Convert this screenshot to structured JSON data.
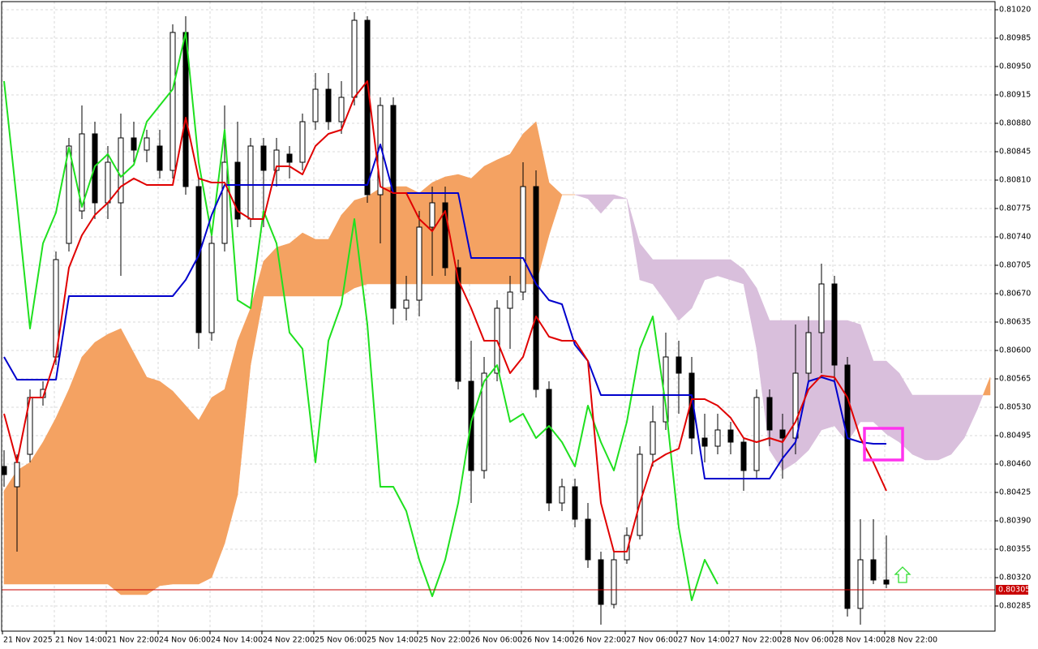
{
  "chart_data": {
    "type": "candlestick",
    "ylim": [
      0.80254,
      0.8103
    ],
    "yticks": [
      {
        "value": 0.8102,
        "label": "0.81020"
      },
      0.80985,
      {
        "value": 0.8095,
        "label": "0.80950"
      },
      0.80915,
      {
        "value": 0.8088,
        "label": "0.80880"
      },
      0.80845,
      {
        "value": 0.8081,
        "label": "0.80810"
      },
      0.80775,
      {
        "value": 0.8074,
        "label": "0.80740"
      },
      0.80705,
      {
        "value": 0.8067,
        "label": "0.80670"
      },
      0.80635,
      {
        "value": 0.806,
        "label": "0.80600"
      },
      0.80565,
      {
        "value": 0.8053,
        "label": "0.80530"
      },
      0.80495,
      {
        "value": 0.8046,
        "label": "0.80460"
      },
      0.80425,
      {
        "value": 0.8039,
        "label": "0.80390"
      },
      0.80355,
      {
        "value": 0.8032,
        "label": "0.80320"
      },
      0.80285
    ],
    "grid": true,
    "x_labels": [
      "21 Nov 2025",
      "21 Nov 14:00",
      "21 Nov 22:00",
      "24 Nov 06:00",
      "24 Nov 14:00",
      "24 Nov 22:00",
      "25 Nov 06:00",
      "25 Nov 14:00",
      "25 Nov 22:00",
      "26 Nov 06:00",
      "26 Nov 14:00",
      "26 Nov 22:00",
      "27 Nov 06:00",
      "27 Nov 14:00",
      "27 Nov 22:00",
      "28 Nov 06:00",
      "28 Nov 14:00",
      "28 Nov 22:00"
    ],
    "bull_color": "#ffffff",
    "bear_color": "#000000",
    "open": [
      0.80457,
      0.80432,
      0.80472,
      0.80542,
      0.80592,
      0.80732,
      0.80772,
      0.80867,
      0.80782,
      0.80782,
      0.80862,
      0.80847,
      0.80852,
      0.80822,
      0.80992,
      0.80802,
      0.80622,
      0.80732,
      0.80832,
      0.80762,
      0.80852,
      0.80822,
      0.80842,
      0.80832,
      0.80882,
      0.80922,
      0.80882,
      0.80912,
      0.81007,
      0.80792,
      0.80902,
      0.80652,
      0.80662,
      0.80752,
      0.80782,
      0.80702,
      0.80562,
      0.80452,
      0.80572,
      0.80652,
      0.80672,
      0.80802,
      0.80552,
      0.80412,
      0.80432,
      0.80392,
      0.80342,
      0.80287,
      0.80342,
      0.80372,
      0.80472,
      0.80512,
      0.80592,
      0.80572,
      0.80492,
      0.80482,
      0.80502,
      0.80487,
      0.80452,
      0.80542,
      0.80502,
      0.80492,
      0.80572,
      0.80622,
      0.80682,
      0.80582,
      0.80282,
      0.80342,
      0.80317
    ],
    "high": [
      0.80477,
      0.80472,
      0.80552,
      0.80562,
      0.80722,
      0.80862,
      0.80902,
      0.80882,
      0.80852,
      0.80892,
      0.80882,
      0.80872,
      0.80872,
      0.81002,
      0.81012,
      0.80812,
      0.80742,
      0.80902,
      0.80882,
      0.80862,
      0.80862,
      0.80862,
      0.80852,
      0.80892,
      0.80942,
      0.80942,
      0.80932,
      0.81017,
      0.81012,
      0.80912,
      0.80912,
      0.80692,
      0.80772,
      0.80802,
      0.80802,
      0.80712,
      0.80612,
      0.80592,
      0.80662,
      0.80692,
      0.80832,
      0.80822,
      0.80562,
      0.80442,
      0.80442,
      0.80412,
      0.80352,
      0.80352,
      0.80382,
      0.80482,
      0.80532,
      0.80622,
      0.80612,
      0.80592,
      0.80522,
      0.80522,
      0.80512,
      0.80492,
      0.80552,
      0.80552,
      0.80522,
      0.80632,
      0.80642,
      0.80707,
      0.80692,
      0.80592,
      0.80392,
      0.80392,
      0.80372
    ],
    "low": [
      0.80432,
      0.80352,
      0.80462,
      0.80532,
      0.80582,
      0.80722,
      0.80762,
      0.80762,
      0.80762,
      0.80692,
      0.80832,
      0.80832,
      0.80812,
      0.80812,
      0.80792,
      0.80602,
      0.80612,
      0.80722,
      0.80752,
      0.80752,
      0.80752,
      0.80802,
      0.80812,
      0.80822,
      0.80872,
      0.80872,
      0.80867,
      0.80902,
      0.80782,
      0.80732,
      0.80632,
      0.80637,
      0.80642,
      0.80692,
      0.80692,
      0.80552,
      0.80412,
      0.80442,
      0.80562,
      0.80602,
      0.80662,
      0.80542,
      0.80402,
      0.80402,
      0.80382,
      0.80332,
      0.80262,
      0.80282,
      0.80337,
      0.80367,
      0.80457,
      0.80502,
      0.80522,
      0.80472,
      0.80462,
      0.80472,
      0.80472,
      0.80427,
      0.80442,
      0.80482,
      0.80442,
      0.80472,
      0.80562,
      0.80572,
      0.80562,
      0.80272,
      0.80262,
      0.80312,
      0.80307
    ],
    "close": [
      0.80447,
      0.80462,
      0.80542,
      0.80552,
      0.80712,
      0.80852,
      0.80867,
      0.80782,
      0.80832,
      0.80862,
      0.80847,
      0.80862,
      0.80822,
      0.80992,
      0.80802,
      0.80622,
      0.80732,
      0.80832,
      0.80762,
      0.80852,
      0.80822,
      0.80847,
      0.80832,
      0.80882,
      0.80922,
      0.80882,
      0.80912,
      0.81007,
      0.80792,
      0.80902,
      0.80652,
      0.80662,
      0.80752,
      0.80782,
      0.80702,
      0.80562,
      0.80452,
      0.80572,
      0.80652,
      0.80672,
      0.80802,
      0.80552,
      0.80412,
      0.80432,
      0.80392,
      0.80342,
      0.80287,
      0.80342,
      0.80372,
      0.80472,
      0.80512,
      0.80592,
      0.80572,
      0.80492,
      0.80482,
      0.80502,
      0.80487,
      0.80452,
      0.80542,
      0.80502,
      0.80492,
      0.80572,
      0.80622,
      0.80682,
      0.80582,
      0.80282,
      0.80342,
      0.80317,
      0.80312
    ],
    "lines": [
      {
        "color": "#1fe01f",
        "values": [
          0.80932,
          0.80782,
          0.80627,
          0.80732,
          0.8077,
          0.8085,
          0.80777,
          0.80827,
          0.80842,
          0.80814,
          0.80829,
          0.80882,
          0.80902,
          0.80922,
          0.80992,
          0.80832,
          0.80742,
          0.80872,
          0.80662,
          0.80652,
          0.80772,
          0.80732,
          0.80622,
          0.80602,
          0.80462,
          0.80612,
          0.80657,
          0.80762,
          0.80632,
          0.80432,
          0.80432,
          0.80402,
          0.80342,
          0.80297,
          0.80342,
          0.80412,
          0.80512,
          0.80562,
          0.80582,
          0.80512,
          0.80522,
          0.80492,
          0.80507,
          0.80487,
          0.80457,
          0.80532,
          0.80487,
          0.80452,
          0.80512,
          0.80602,
          0.80642,
          0.80532,
          0.80382,
          0.80292,
          0.80342,
          0.80312,
          null,
          null,
          null,
          null,
          null,
          null,
          null,
          null,
          null,
          null,
          null,
          null,
          null
        ]
      },
      {
        "color": "#0000cc",
        "values": [
          0.80592,
          0.80564,
          0.80564,
          0.80564,
          0.80564,
          0.80667,
          0.80667,
          0.80667,
          0.80667,
          0.80667,
          0.80667,
          0.80667,
          0.80667,
          0.80667,
          0.80687,
          0.80717,
          0.80767,
          0.80804,
          0.80804,
          0.80804,
          0.80804,
          0.80804,
          0.80804,
          0.80804,
          0.80804,
          0.80804,
          0.80804,
          0.80804,
          0.80804,
          0.80854,
          0.80794,
          0.80794,
          0.80794,
          0.80794,
          0.80794,
          0.80794,
          0.80714,
          0.80714,
          0.80714,
          0.80714,
          0.80714,
          0.80682,
          0.80662,
          0.80657,
          0.80607,
          0.80587,
          0.80545,
          0.80545,
          0.80545,
          0.80545,
          0.80545,
          0.80545,
          0.80545,
          0.80545,
          0.80442,
          0.80442,
          0.80442,
          0.80442,
          0.80442,
          0.80442,
          0.80467,
          0.80487,
          0.80562,
          0.80567,
          0.80562,
          0.80492,
          0.80487,
          0.80485,
          0.80485
        ]
      },
      {
        "color": "#e00000",
        "values": [
          0.80522,
          0.80462,
          0.80542,
          0.80542,
          0.80592,
          0.80702,
          0.80742,
          0.80767,
          0.80782,
          0.80802,
          0.80812,
          0.80804,
          0.80804,
          0.80804,
          0.80887,
          0.80812,
          0.80807,
          0.80807,
          0.80772,
          0.80762,
          0.80762,
          0.80827,
          0.80827,
          0.80817,
          0.80852,
          0.80867,
          0.80872,
          0.80912,
          0.80932,
          0.80802,
          0.80794,
          0.80794,
          0.80762,
          0.80747,
          0.80772,
          0.80687,
          0.80652,
          0.80612,
          0.80612,
          0.80572,
          0.80592,
          0.80642,
          0.80617,
          0.80612,
          0.80612,
          0.80587,
          0.80412,
          0.80352,
          0.80352,
          0.80412,
          0.80462,
          0.80472,
          0.80479,
          0.8054,
          0.8054,
          0.80532,
          0.80517,
          0.80492,
          0.80487,
          0.80492,
          0.80487,
          0.80512,
          0.80552,
          0.80569,
          0.80567,
          0.80542,
          0.80492,
          0.80462,
          0.80427
        ]
      }
    ],
    "cloud": {
      "up_color": "#f4a262",
      "down_color": "#d9bfdc",
      "span_a": [
        0.80427,
        0.80452,
        0.80462,
        0.80487,
        0.80517,
        0.80552,
        0.80592,
        0.8061,
        0.8062,
        0.80627,
        0.80597,
        0.80567,
        0.80562,
        0.8055,
        0.80532,
        0.80514,
        0.80542,
        0.80552,
        0.80612,
        0.80652,
        0.8071,
        0.80727,
        0.80732,
        0.80745,
        0.80737,
        0.80737,
        0.80767,
        0.80785,
        0.8079,
        0.808,
        0.80802,
        0.80802,
        0.80794,
        0.80807,
        0.80814,
        0.80817,
        0.80812,
        0.80827,
        0.80835,
        0.80842,
        0.80867,
        0.80882,
        0.80807,
        0.80792,
        0.80792,
        0.80787,
        0.80769,
        0.80787,
        0.80787,
        0.80687,
        0.80682,
        0.8066,
        0.80637,
        0.80652,
        0.80687,
        0.80692,
        0.80687,
        0.80682,
        0.80602,
        0.80477,
        0.80452,
        0.80462,
        0.80477,
        0.80502,
        0.80507,
        0.80487,
        0.80512,
        0.80512,
        0.80497,
        0.80487,
        0.80472,
        0.80465,
        0.80465,
        0.80472,
        0.80492,
        0.80527,
        0.80567
      ],
      "span_b": [
        0.80312,
        0.80312,
        0.80312,
        0.80312,
        0.80312,
        0.80312,
        0.80312,
        0.80312,
        0.80312,
        0.80299,
        0.80299,
        0.80299,
        0.8031,
        0.80312,
        0.80312,
        0.80312,
        0.8032,
        0.80362,
        0.80422,
        0.80582,
        0.80667,
        0.80667,
        0.80667,
        0.80667,
        0.80667,
        0.80667,
        0.80667,
        0.80677,
        0.80682,
        0.80682,
        0.80682,
        0.80682,
        0.80682,
        0.80682,
        0.80682,
        0.80682,
        0.80682,
        0.80682,
        0.80682,
        0.80682,
        0.80682,
        0.80682,
        0.80742,
        0.80792,
        0.80792,
        0.80792,
        0.80792,
        0.80792,
        0.80787,
        0.80732,
        0.80712,
        0.80712,
        0.80712,
        0.80712,
        0.80712,
        0.80712,
        0.80712,
        0.807,
        0.80677,
        0.80637,
        0.80637,
        0.80637,
        0.80637,
        0.80637,
        0.80637,
        0.80637,
        0.80632,
        0.80587,
        0.80587,
        0.80572,
        0.80545,
        0.80545,
        0.80545,
        0.80545,
        0.80545,
        0.80545,
        0.80545
      ]
    },
    "current_price": 0.80305,
    "current_price_color": "#c80000"
  }
}
